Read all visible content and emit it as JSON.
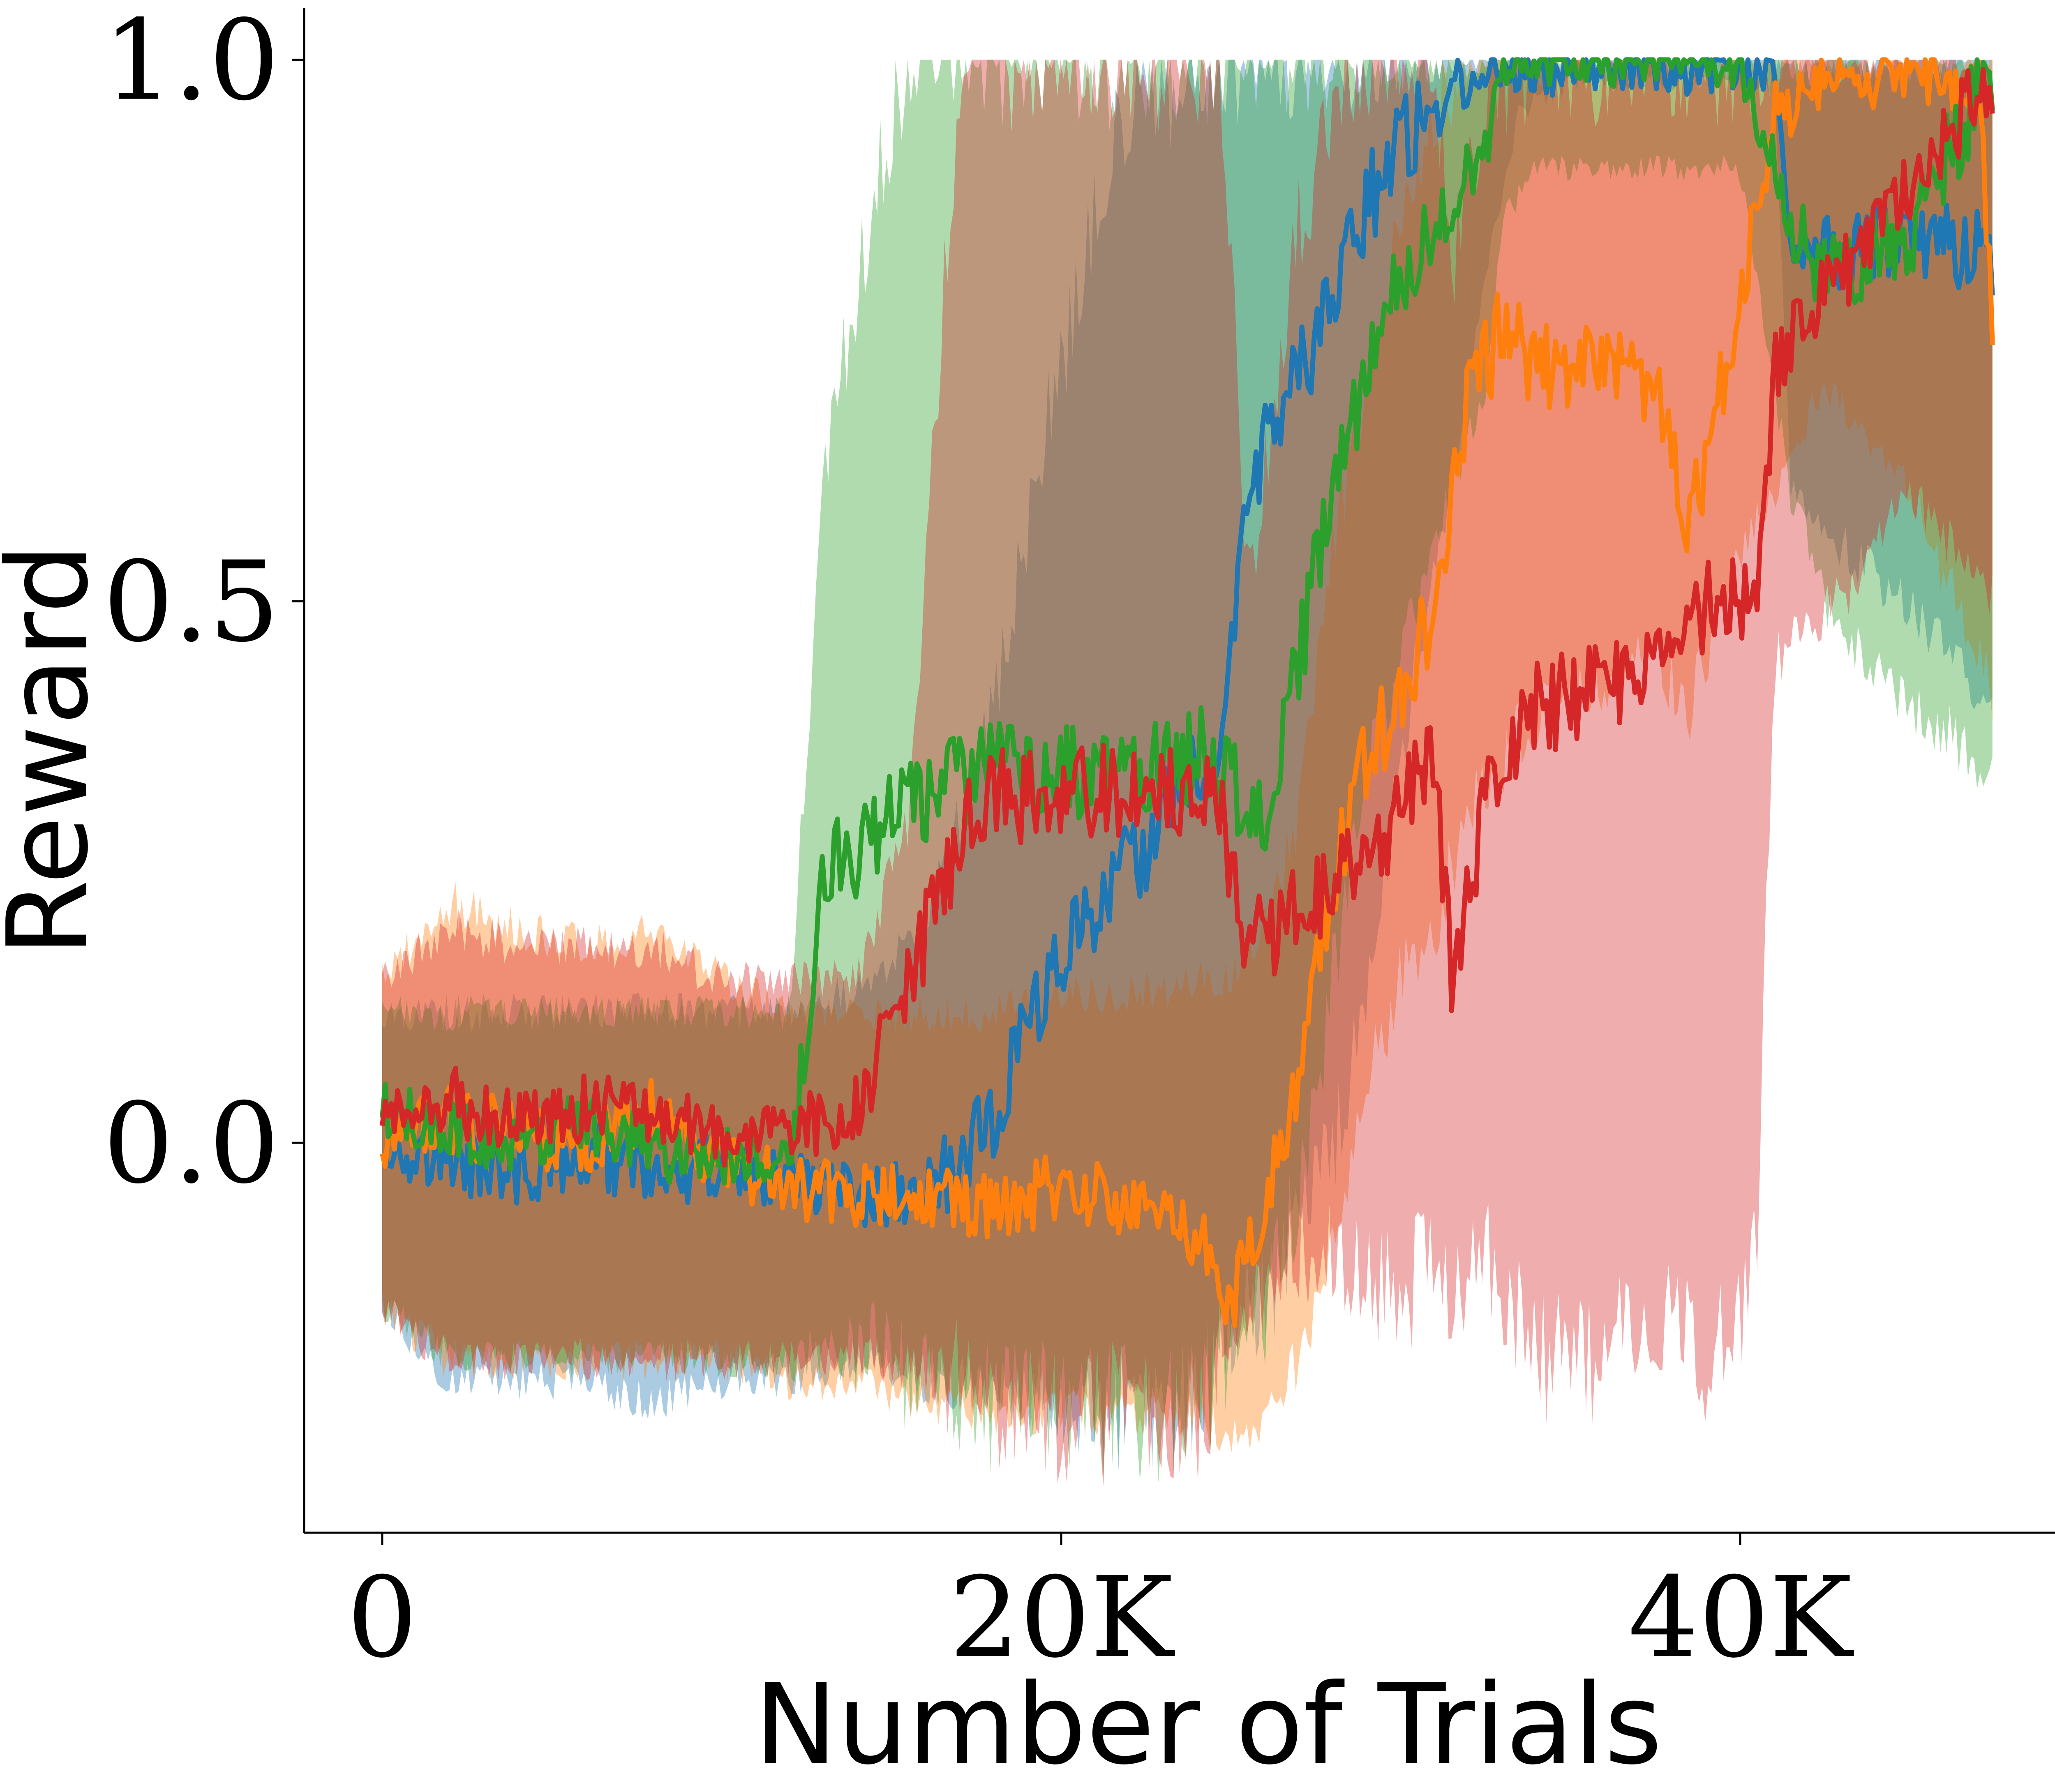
{
  "chart_data": {
    "type": "line",
    "xlabel": "Number of Trials",
    "ylabel": "Reward",
    "xlim": [
      -2300,
      50000
    ],
    "ylim": [
      -0.36,
      1.04
    ],
    "x_ticks": [
      0,
      20000,
      40000
    ],
    "x_tick_labels": [
      "0",
      "20K",
      "40K"
    ],
    "y_ticks": [
      0.0,
      0.5,
      1.0
    ],
    "y_tick_labels": [
      "0.0",
      "0.5",
      "1.0"
    ],
    "grid": false,
    "legend": "none",
    "series": [
      {
        "color": "#1f77b4",
        "x": [
          0,
          2000,
          4000,
          6000,
          8000,
          10000,
          12000,
          14000,
          16000,
          18000,
          19500,
          21000,
          22000,
          24000,
          24700,
          25500,
          26500,
          27500,
          28500,
          29500,
          30500,
          31500,
          32500,
          33500,
          35000,
          37000,
          39000,
          41000,
          41500,
          43000,
          45000,
          47500
        ],
        "mean": [
          0.0,
          -0.02,
          -0.03,
          -0.01,
          -0.03,
          -0.02,
          -0.04,
          -0.05,
          -0.05,
          0.02,
          0.14,
          0.22,
          0.25,
          0.35,
          0.38,
          0.6,
          0.68,
          0.73,
          0.82,
          0.9,
          0.94,
          0.98,
          0.99,
          0.99,
          0.99,
          1.0,
          0.99,
          0.99,
          0.83,
          0.82,
          0.84,
          0.82
        ],
        "lower": [
          -0.15,
          -0.22,
          -0.22,
          -0.22,
          -0.24,
          -0.22,
          -0.22,
          -0.2,
          -0.22,
          -0.22,
          -0.23,
          -0.24,
          -0.25,
          -0.25,
          -0.2,
          -0.15,
          -0.12,
          -0.05,
          0.05,
          0.25,
          0.45,
          0.6,
          0.8,
          0.95,
          0.98,
          0.98,
          0.98,
          0.98,
          0.6,
          0.55,
          0.5,
          0.38
        ],
        "upper": [
          0.12,
          0.12,
          0.12,
          0.12,
          0.12,
          0.12,
          0.12,
          0.14,
          0.2,
          0.4,
          0.65,
          0.85,
          0.95,
          1.0,
          1.0,
          1.0,
          1.0,
          1.0,
          1.0,
          1.0,
          1.0,
          1.0,
          1.0,
          1.0,
          1.0,
          1.0,
          1.0,
          1.0,
          1.0,
          1.0,
          1.0,
          1.0
        ]
      },
      {
        "color": "#ff7f0e",
        "x": [
          0,
          2000,
          4000,
          6000,
          8000,
          10000,
          12000,
          14000,
          16000,
          18000,
          20000,
          22000,
          24000,
          25000,
          26000,
          27000,
          28000,
          29000,
          30000,
          31000,
          32000,
          33000,
          34000,
          36000,
          37500,
          38500,
          40000,
          41000,
          42500,
          45000,
          47000,
          47500
        ],
        "mean": [
          0.0,
          0.02,
          0.01,
          0.0,
          0.03,
          -0.02,
          -0.04,
          -0.05,
          -0.05,
          -0.06,
          -0.04,
          -0.06,
          -0.08,
          -0.15,
          -0.05,
          0.05,
          0.25,
          0.35,
          0.42,
          0.5,
          0.68,
          0.75,
          0.72,
          0.72,
          0.7,
          0.56,
          0.78,
          0.95,
          0.98,
          0.99,
          0.99,
          0.74
        ],
        "lower": [
          -0.15,
          -0.2,
          -0.2,
          -0.2,
          -0.2,
          -0.2,
          -0.22,
          -0.22,
          -0.24,
          -0.25,
          -0.25,
          -0.25,
          -0.25,
          -0.28,
          -0.25,
          -0.2,
          -0.1,
          0.05,
          0.15,
          0.2,
          0.3,
          0.35,
          0.4,
          0.42,
          0.45,
          0.4,
          0.55,
          0.6,
          0.7,
          0.6,
          0.45,
          0.4
        ],
        "upper": [
          0.15,
          0.22,
          0.2,
          0.18,
          0.2,
          0.15,
          0.12,
          0.12,
          0.12,
          0.12,
          0.14,
          0.14,
          0.15,
          0.15,
          0.2,
          0.3,
          0.55,
          0.7,
          0.85,
          0.95,
          1.0,
          1.0,
          1.0,
          1.0,
          1.0,
          1.0,
          1.0,
          1.0,
          1.0,
          1.0,
          1.0,
          1.0
        ]
      },
      {
        "color": "#2ca02c",
        "x": [
          0,
          2000,
          4000,
          6000,
          8000,
          10000,
          12000,
          13000,
          14000,
          15000,
          16000,
          18000,
          20000,
          22000,
          24000,
          24700,
          26000,
          27000,
          28000,
          29000,
          30000,
          31000,
          32500,
          33000,
          34000,
          36000,
          38000,
          40000,
          41500,
          42500,
          45000,
          47500
        ],
        "mean": [
          0.03,
          0.01,
          0.0,
          0.02,
          -0.01,
          -0.01,
          -0.03,
          0.25,
          0.27,
          0.3,
          0.32,
          0.35,
          0.34,
          0.34,
          0.36,
          0.35,
          0.28,
          0.45,
          0.6,
          0.7,
          0.8,
          0.85,
          0.92,
          1.0,
          1.0,
          1.0,
          1.0,
          1.0,
          0.85,
          0.8,
          0.84,
          1.0
        ],
        "lower": [
          -0.15,
          -0.2,
          -0.2,
          -0.2,
          -0.2,
          -0.2,
          -0.2,
          -0.2,
          -0.2,
          -0.2,
          -0.22,
          -0.24,
          -0.25,
          -0.25,
          -0.25,
          -0.2,
          -0.15,
          -0.05,
          0.15,
          0.35,
          0.45,
          0.55,
          0.7,
          0.85,
          0.9,
          0.9,
          0.9,
          0.9,
          0.6,
          0.5,
          0.4,
          0.35
        ],
        "upper": [
          0.12,
          0.12,
          0.12,
          0.12,
          0.12,
          0.12,
          0.12,
          0.6,
          0.8,
          0.95,
          1.0,
          1.0,
          1.0,
          1.0,
          1.0,
          1.0,
          1.0,
          1.0,
          1.0,
          1.0,
          1.0,
          1.0,
          1.0,
          1.0,
          1.0,
          1.0,
          1.0,
          1.0,
          1.0,
          1.0,
          1.0,
          1.0
        ]
      },
      {
        "color": "#d62728",
        "x": [
          0,
          2000,
          4000,
          6000,
          8000,
          10000,
          12000,
          14000,
          15500,
          17000,
          18000,
          20000,
          22000,
          24000,
          24700,
          25500,
          27000,
          28500,
          30000,
          31000,
          31500,
          32500,
          34000,
          36000,
          37500,
          39000,
          40000,
          40500,
          41000,
          43000,
          45000,
          47500
        ],
        "mean": [
          0.02,
          0.04,
          0.02,
          0.03,
          0.03,
          0.0,
          0.01,
          0.03,
          0.15,
          0.28,
          0.32,
          0.32,
          0.33,
          0.32,
          0.3,
          0.18,
          0.22,
          0.25,
          0.3,
          0.36,
          0.14,
          0.32,
          0.4,
          0.42,
          0.45,
          0.5,
          0.5,
          0.48,
          0.72,
          0.8,
          0.88,
          0.99
        ],
        "lower": [
          -0.15,
          -0.2,
          -0.2,
          -0.2,
          -0.2,
          -0.2,
          -0.2,
          -0.2,
          -0.2,
          -0.22,
          -0.24,
          -0.25,
          -0.25,
          -0.25,
          -0.2,
          -0.15,
          -0.1,
          -0.1,
          -0.15,
          -0.1,
          -0.15,
          -0.1,
          -0.2,
          -0.2,
          -0.15,
          -0.2,
          -0.15,
          -0.1,
          0.45,
          0.5,
          0.6,
          0.5
        ],
        "upper": [
          0.15,
          0.2,
          0.18,
          0.18,
          0.18,
          0.15,
          0.15,
          0.15,
          0.3,
          1.0,
          1.0,
          1.0,
          1.0,
          1.0,
          1.0,
          0.5,
          0.85,
          1.0,
          1.0,
          1.0,
          0.8,
          0.95,
          1.0,
          1.0,
          1.0,
          1.0,
          1.0,
          1.0,
          1.0,
          1.0,
          1.0,
          1.0
        ]
      }
    ]
  }
}
